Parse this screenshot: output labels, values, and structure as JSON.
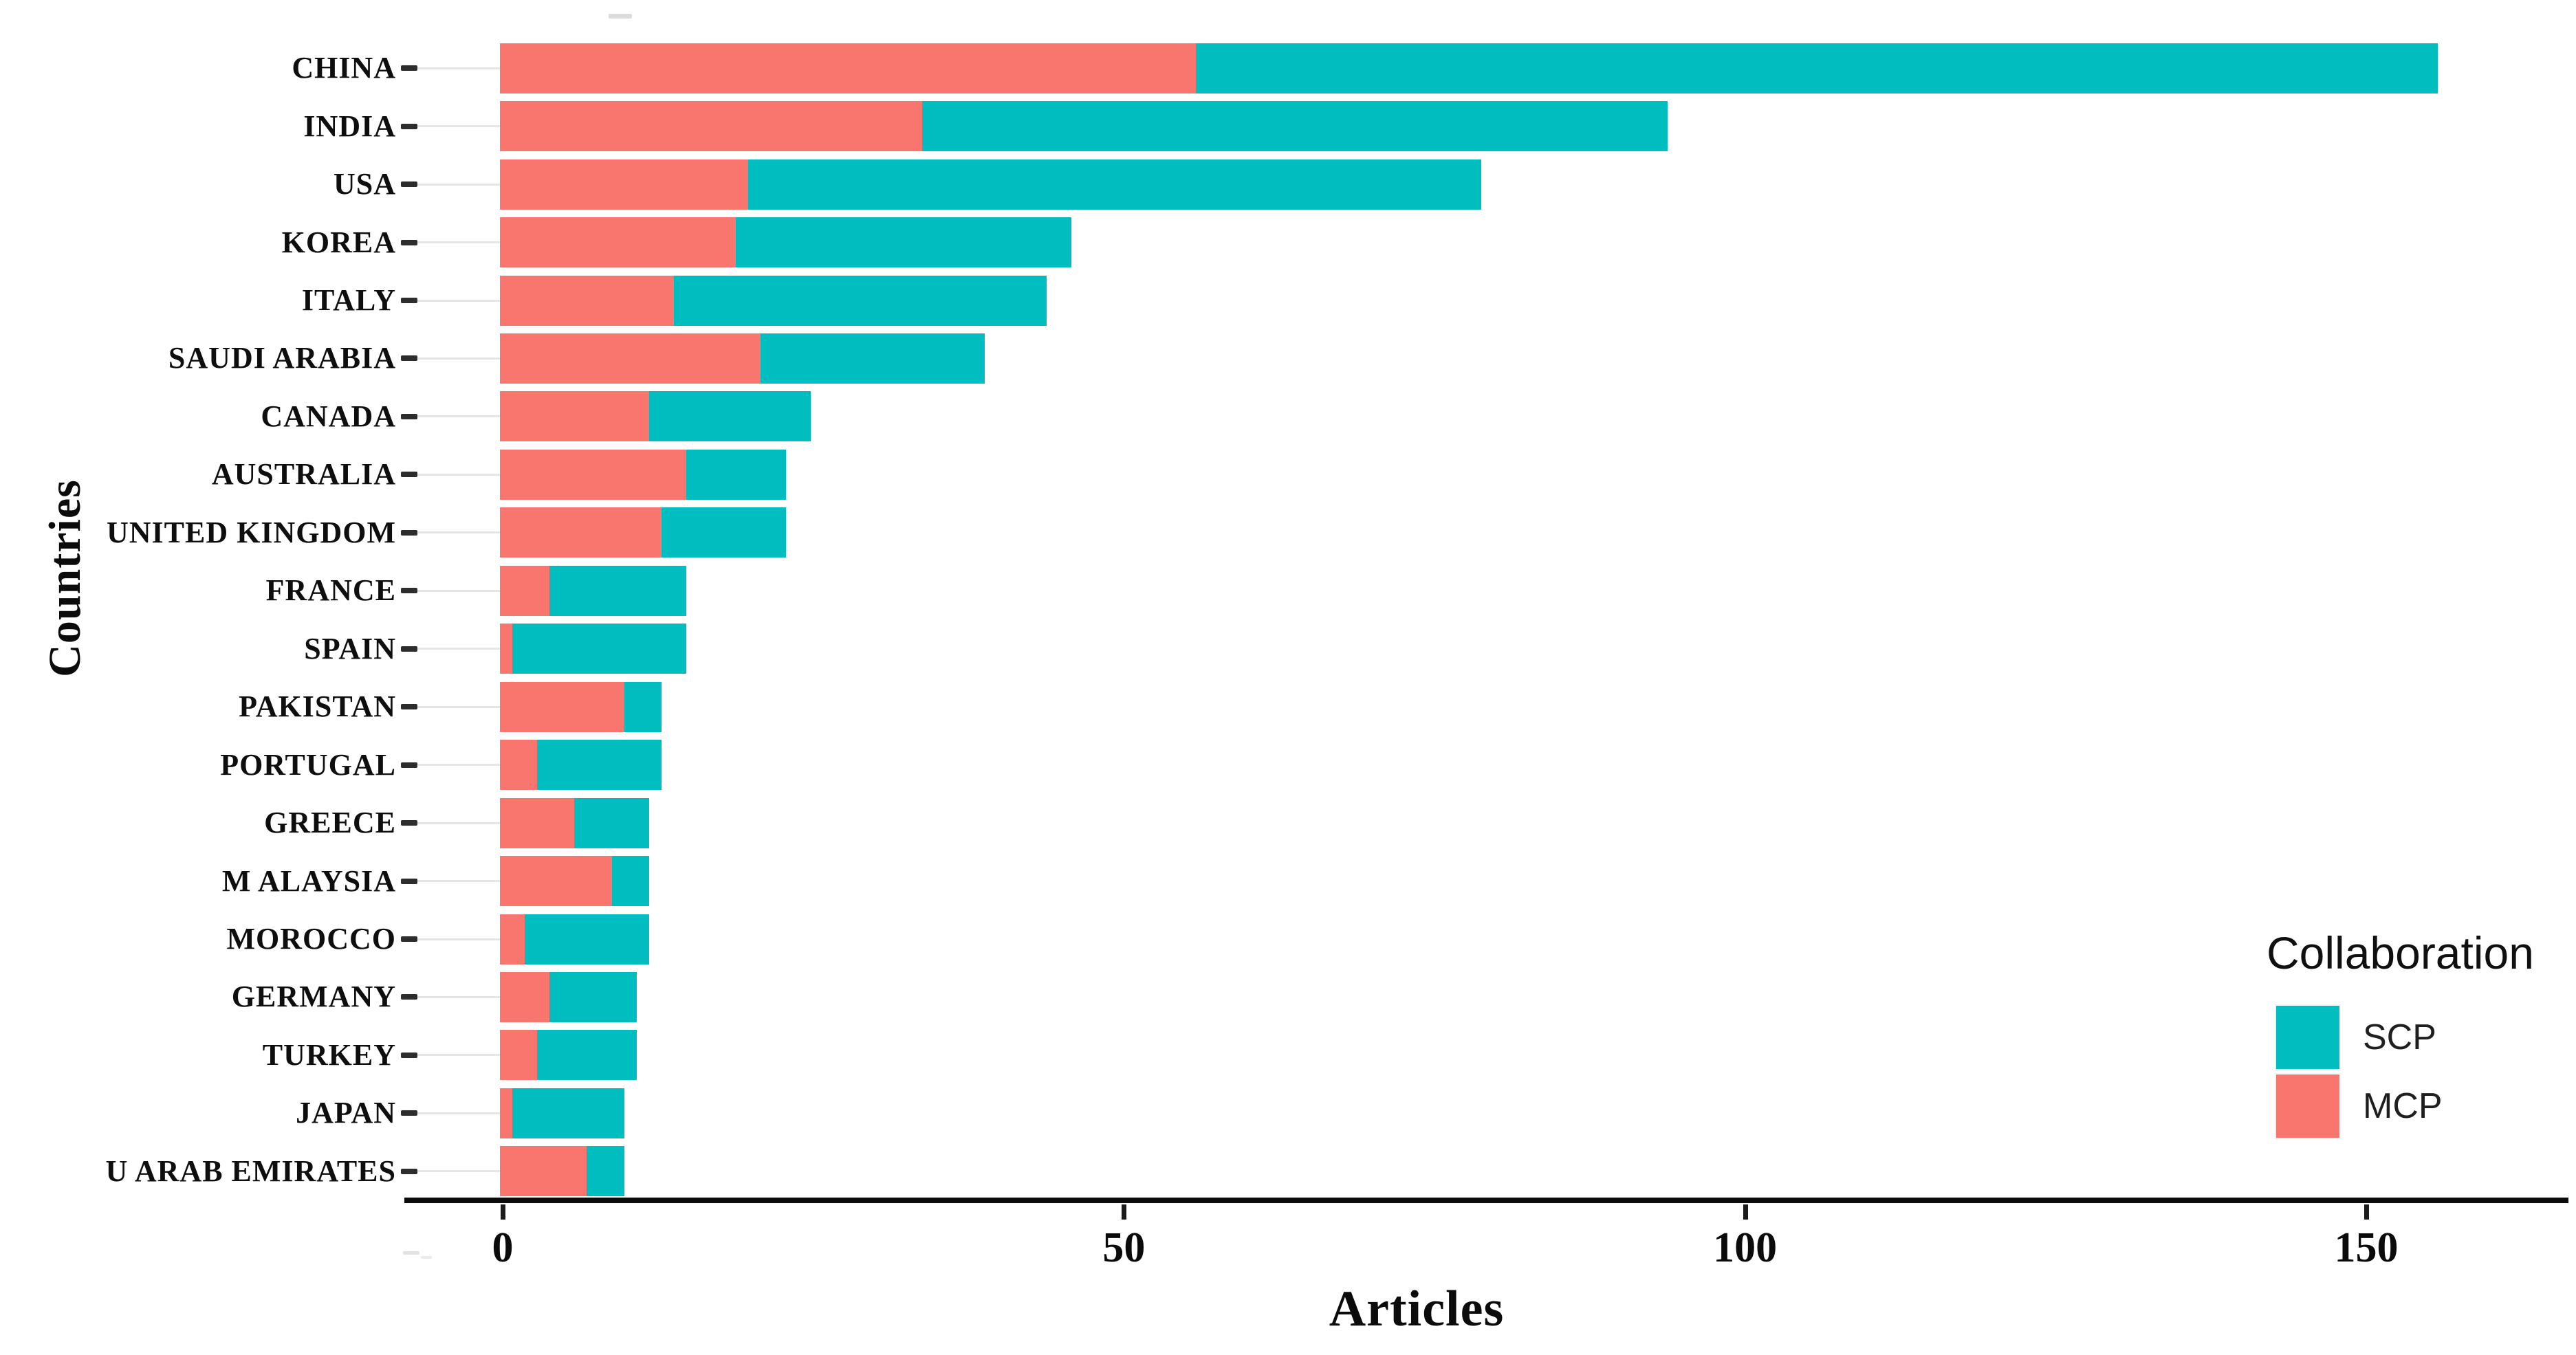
{
  "chart_data": {
    "type": "bar",
    "orientation": "horizontal",
    "stacked": true,
    "xlabel": "Articles",
    "ylabel": "Countries",
    "xlim": [
      0,
      166
    ],
    "x_ticks": [
      0,
      50,
      100,
      150
    ],
    "grid": "off",
    "categories": [
      "CHINA",
      "INDIA",
      "USA",
      "KOREA",
      "ITALY",
      "SAUDI ARABIA",
      "CANADA",
      "AUSTRALIA",
      "UNITED KINGDOM",
      "FRANCE",
      "SPAIN",
      "PAKISTAN",
      "PORTUGAL",
      "GREECE",
      "M ALAYSIA",
      "MOROCCO",
      "GERMANY",
      "TURKEY",
      "JAPAN",
      "U ARAB EMIRATES"
    ],
    "series": [
      {
        "name": "MCP",
        "color": "#F8766D",
        "values": [
          56,
          34,
          20,
          19,
          14,
          21,
          12,
          15,
          13,
          4,
          1,
          10,
          3,
          6,
          9,
          2,
          4,
          3,
          1,
          7
        ]
      },
      {
        "name": "SCP",
        "color": "#00BDC0",
        "values": [
          100,
          60,
          59,
          27,
          30,
          18,
          13,
          8,
          10,
          11,
          14,
          3,
          10,
          6,
          3,
          10,
          7,
          8,
          9,
          3
        ]
      }
    ],
    "totals": [
      156,
      94,
      79,
      46,
      44,
      39,
      25,
      23,
      23,
      15,
      15,
      13,
      13,
      12,
      12,
      12,
      11,
      11,
      10,
      10
    ],
    "segment_order_left_to_right": [
      "MCP",
      "SCP"
    ],
    "legend": {
      "title": "Collaboration",
      "position": "right",
      "entries": [
        {
          "label": "SCP",
          "color": "#00BDC0"
        },
        {
          "label": "MCP",
          "color": "#F8766D"
        }
      ]
    }
  },
  "colors": {
    "background": "#ffffff",
    "axis_line": "#0b0b0b",
    "tick_mark": "#2d2d2d",
    "leader_line": "#e5e5e5",
    "text": "#0e0e0e"
  }
}
